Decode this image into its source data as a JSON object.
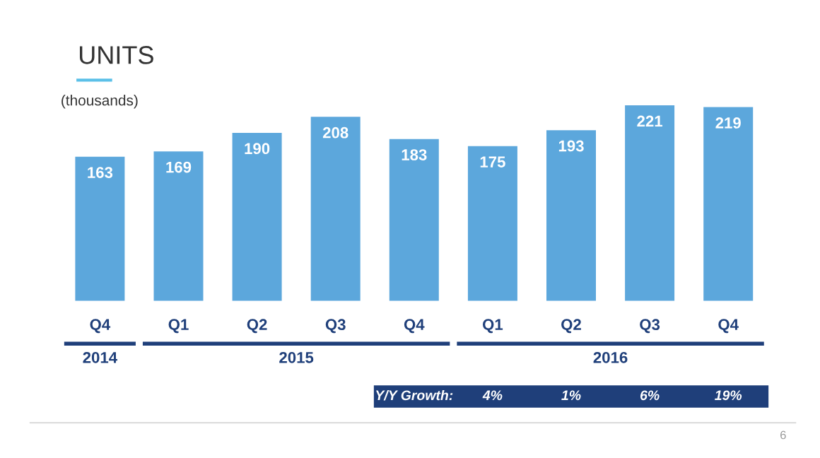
{
  "chart_data": {
    "type": "bar",
    "title": "UNITS",
    "ylabel": "(thousands)",
    "categories": [
      "Q4",
      "Q1",
      "Q2",
      "Q3",
      "Q4",
      "Q1",
      "Q2",
      "Q3",
      "Q4"
    ],
    "values": [
      163,
      169,
      190,
      208,
      183,
      175,
      193,
      221,
      219
    ],
    "color": "#5ca7dc",
    "data_labels": true,
    "grid": false,
    "legend": false,
    "annotations": [
      "2014",
      "2015",
      "2016",
      "Y/Y Growth:",
      "4%",
      "1%",
      "6%",
      "19%",
      "6"
    ]
  }
}
